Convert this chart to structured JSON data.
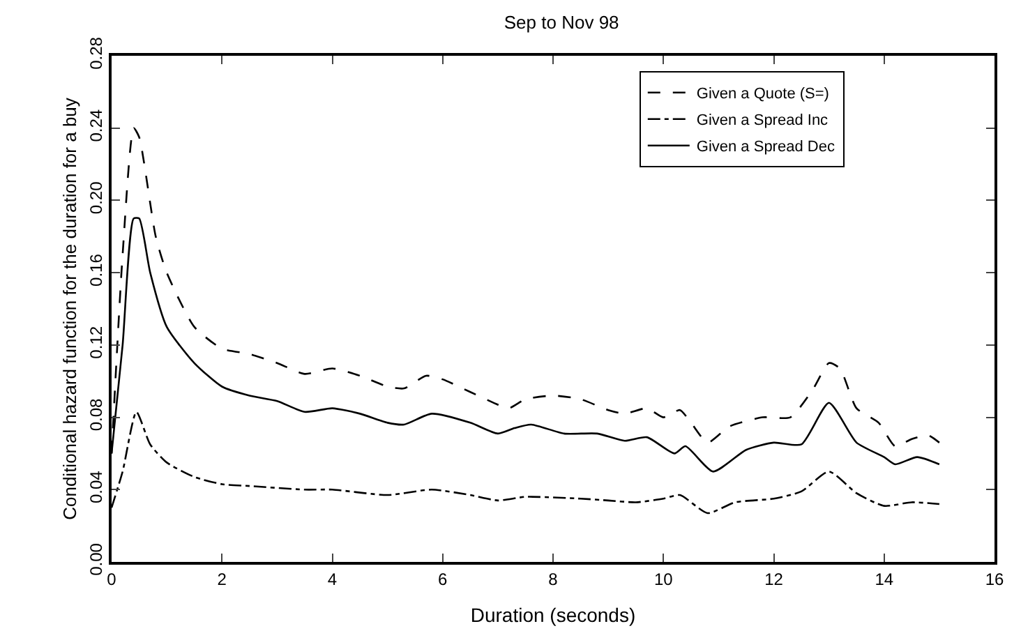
{
  "chart_data": {
    "type": "line",
    "title": "Sep to Nov 98",
    "xlabel": "Duration (seconds)",
    "ylabel": "Conditional hazard function for the duration for a buy",
    "xlim": [
      0,
      16
    ],
    "xticks": [
      0,
      2,
      4,
      6,
      8,
      10,
      12,
      14,
      16
    ],
    "ylim": [
      0,
      0.28
    ],
    "yticks": [
      {
        "value": 0,
        "label": "0.00"
      },
      0.04,
      0.08,
      0.12,
      0.16,
      {
        "value": 0.2,
        "label": "0.20"
      },
      0.24,
      0.28
    ],
    "legend": "top right",
    "marker": "none",
    "series": [
      {
        "name": "Given a Quote (S=)",
        "color": "#000000",
        "line_style": "dashed",
        "x": [
          0,
          0.2,
          0.4,
          0.5,
          0.8,
          1.0,
          1.5,
          2.0,
          2.5,
          3.0,
          3.5,
          4.0,
          4.5,
          5.0,
          5.3,
          5.7,
          6.0,
          6.5,
          7.0,
          7.2,
          7.5,
          8.0,
          8.5,
          9.0,
          9.3,
          9.7,
          10.0,
          10.3,
          10.5,
          10.8,
          11.2,
          11.8,
          12.3,
          12.7,
          13.0,
          13.2,
          13.5,
          13.9,
          14.2,
          14.5,
          14.8,
          15.0
        ],
        "values": [
          0.06,
          0.17,
          0.24,
          0.235,
          0.18,
          0.16,
          0.13,
          0.118,
          0.115,
          0.11,
          0.104,
          0.107,
          0.103,
          0.097,
          0.096,
          0.103,
          0.101,
          0.094,
          0.087,
          0.085,
          0.09,
          0.092,
          0.09,
          0.084,
          0.082,
          0.085,
          0.08,
          0.084,
          0.077,
          0.066,
          0.075,
          0.08,
          0.08,
          0.095,
          0.11,
          0.107,
          0.085,
          0.077,
          0.064,
          0.068,
          0.07,
          0.066
        ]
      },
      {
        "name": "Given a Spread Inc",
        "color": "#000000",
        "line_style": "dashdot",
        "x": [
          0,
          0.2,
          0.45,
          0.7,
          1.0,
          1.5,
          2.0,
          2.5,
          3.5,
          4.0,
          5.0,
          5.8,
          6.5,
          7.0,
          7.5,
          8.5,
          9.0,
          9.5,
          10.0,
          10.3,
          10.8,
          11.3,
          12.0,
          12.5,
          13.0,
          13.5,
          14.0,
          14.5,
          15.0
        ],
        "values": [
          0.03,
          0.05,
          0.083,
          0.065,
          0.055,
          0.047,
          0.043,
          0.042,
          0.04,
          0.04,
          0.037,
          0.04,
          0.037,
          0.034,
          0.036,
          0.035,
          0.034,
          0.033,
          0.035,
          0.037,
          0.027,
          0.033,
          0.035,
          0.039,
          0.05,
          0.038,
          0.031,
          0.033,
          0.032
        ]
      },
      {
        "name": "Given a Spread Dec",
        "color": "#000000",
        "line_style": "solid",
        "x": [
          0,
          0.2,
          0.4,
          0.5,
          0.7,
          1.0,
          1.5,
          2.0,
          2.5,
          3.0,
          3.5,
          4.0,
          4.5,
          5.0,
          5.3,
          5.8,
          6.5,
          7.0,
          7.3,
          7.6,
          8.2,
          8.8,
          9.3,
          9.7,
          10.2,
          10.4,
          10.9,
          11.5,
          12.0,
          12.5,
          13.0,
          13.5,
          14.0,
          14.2,
          14.6,
          15.0
        ],
        "values": [
          0.06,
          0.12,
          0.19,
          0.19,
          0.16,
          0.13,
          0.11,
          0.097,
          0.092,
          0.089,
          0.083,
          0.085,
          0.082,
          0.077,
          0.076,
          0.082,
          0.077,
          0.071,
          0.074,
          0.076,
          0.071,
          0.071,
          0.067,
          0.069,
          0.06,
          0.064,
          0.05,
          0.062,
          0.066,
          0.065,
          0.088,
          0.066,
          0.058,
          0.054,
          0.058,
          0.054
        ]
      }
    ]
  }
}
